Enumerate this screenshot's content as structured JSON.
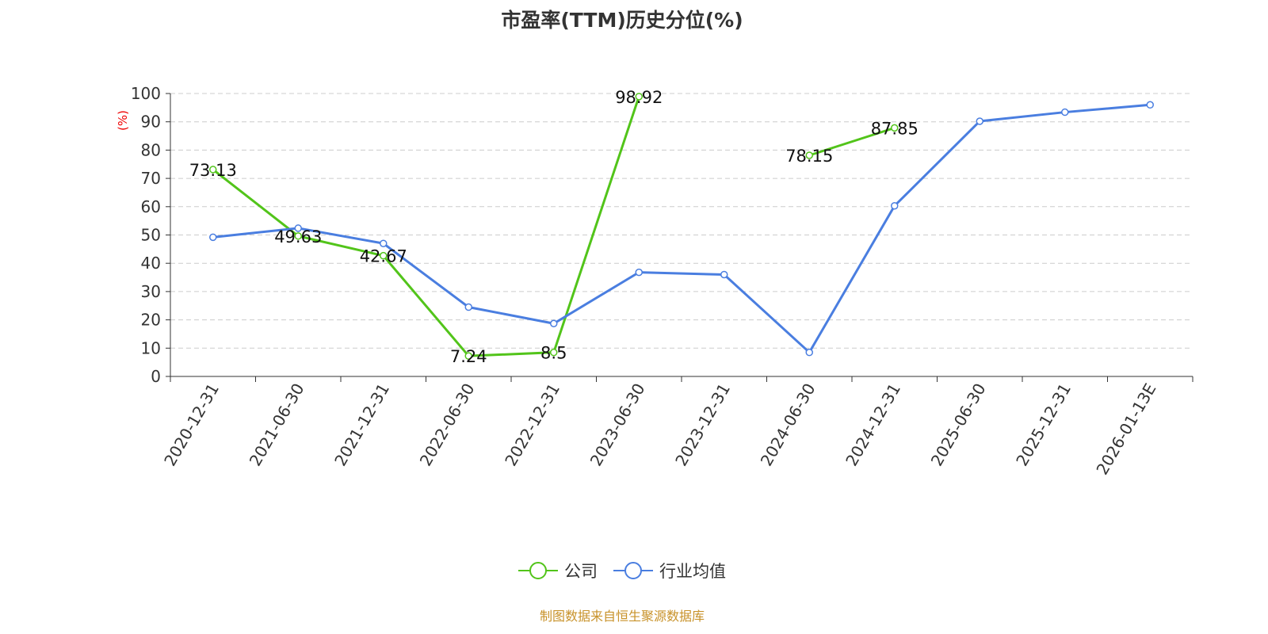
{
  "chart_data": {
    "type": "line",
    "title": "市盈率(TTM)历史分位(%)",
    "ylabel": "(%)",
    "xlabel": "",
    "ylim": [
      0,
      100
    ],
    "yticks": [
      0,
      10,
      20,
      30,
      40,
      50,
      60,
      70,
      80,
      90,
      100
    ],
    "grid": true,
    "legend_position": "bottom",
    "categories": [
      "2020-12-31",
      "2021-06-30",
      "2021-12-31",
      "2022-06-30",
      "2022-12-31",
      "2023-06-30",
      "2023-12-31",
      "2024-06-30",
      "2024-12-31",
      "2025-06-30",
      "2025-12-31",
      "2026-01-13E"
    ],
    "series": [
      {
        "name": "公司",
        "color": "#52c41a",
        "labels": true,
        "values": [
          73.13,
          49.63,
          42.67,
          7.24,
          8.5,
          98.92,
          null,
          78.15,
          87.85,
          null,
          null,
          null
        ]
      },
      {
        "name": "行业均值",
        "color": "#4a7ee0",
        "labels": false,
        "values": [
          49.2,
          52.4,
          47.0,
          24.5,
          18.7,
          36.8,
          36.0,
          8.5,
          60.3,
          90.2,
          93.4,
          96.0
        ]
      }
    ]
  },
  "footer": "制图数据来自恒生聚源数据库"
}
